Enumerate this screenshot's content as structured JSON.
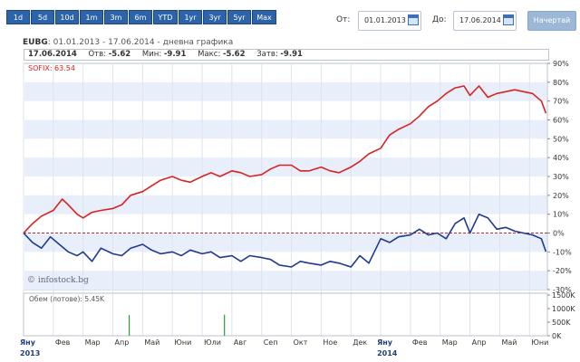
{
  "range_buttons": [
    "1d",
    "5d",
    "10d",
    "1m",
    "3m",
    "6m",
    "YTD",
    "1yr",
    "3yr",
    "5yr",
    "Max"
  ],
  "date_filter": {
    "from_label": "От:",
    "from_value": "01.01.2013",
    "to_label": "До:",
    "to_value": "17.06.2014",
    "draw_button": "Начертай"
  },
  "header": {
    "ticker": "EUBG",
    "subtitle": ": 01.01.2013 - 17.06.2014 - дневна графика"
  },
  "infobar": {
    "date": "17.06.2014",
    "open_label": "Отв:",
    "open_value": "-5.62",
    "min_label": "Мин:",
    "min_value": "-9.91",
    "max_label": "Макс:",
    "max_value": "-5.62",
    "close_label": "Затв:",
    "close_value": "-9.91"
  },
  "legend_sofix": "SOFIX: 63.54",
  "watermark": "© infostock.bg",
  "volume_label": "Обем (лотове): 5.45K",
  "colors": {
    "sofix": "#d9231f",
    "eubg": "#1f3a8f",
    "accent": "#2d63a8",
    "volume": "#2a9a3a"
  },
  "chart_data": {
    "type": "line",
    "y_unit": "%",
    "ylim": [
      -30,
      90
    ],
    "y_ticks": [
      "90%",
      "80%",
      "70%",
      "60%",
      "50%",
      "40%",
      "30%",
      "20%",
      "10%",
      "0%",
      "-10%",
      "-20%",
      "-30%"
    ],
    "x_ticks": [
      "Яну",
      "Фев",
      "Мар",
      "Апр",
      "Май",
      "Юни",
      "Юли",
      "Авг",
      "Сеп",
      "Окт",
      "Ное",
      "Дек",
      "Яну",
      "Фев",
      "Мар",
      "Апр",
      "Май",
      "Юни"
    ],
    "years": [
      "2013",
      "2014"
    ],
    "series": [
      {
        "name": "SOFIX",
        "x": [
          0,
          0.3,
          0.6,
          1.0,
          1.3,
          1.5,
          1.8,
          2.0,
          2.3,
          2.6,
          3.0,
          3.3,
          3.6,
          4.0,
          4.3,
          4.6,
          5.0,
          5.3,
          5.6,
          6.0,
          6.3,
          6.6,
          7.0,
          7.3,
          7.6,
          8.0,
          8.3,
          8.6,
          9.0,
          9.3,
          9.6,
          10.0,
          10.3,
          10.6,
          11.0,
          11.3,
          11.6,
          12.0,
          12.3,
          12.6,
          13.0,
          13.3,
          13.6,
          13.9,
          14.2,
          14.5,
          14.8,
          15.0,
          15.3,
          15.6,
          15.9,
          16.2,
          16.5,
          16.8,
          17.1,
          17.4,
          17.55
        ],
        "values": [
          0,
          5,
          9,
          12,
          18,
          15,
          10,
          8,
          11,
          12,
          13,
          15,
          20,
          22,
          25,
          28,
          30,
          28,
          27,
          30,
          32,
          30,
          33,
          32,
          30,
          31,
          34,
          36,
          36,
          33,
          33,
          35,
          33,
          32,
          35,
          38,
          42,
          45,
          52,
          55,
          58,
          62,
          67,
          70,
          74,
          77,
          78,
          73,
          78,
          72,
          74,
          75,
          76,
          75,
          74,
          70,
          63.54
        ]
      },
      {
        "name": "EUBG",
        "x": [
          0,
          0.3,
          0.6,
          0.9,
          1.2,
          1.5,
          1.8,
          2.0,
          2.3,
          2.6,
          3.0,
          3.3,
          3.6,
          4.0,
          4.3,
          4.6,
          5.0,
          5.3,
          5.6,
          6.0,
          6.3,
          6.6,
          7.0,
          7.3,
          7.6,
          8.0,
          8.3,
          8.6,
          9.0,
          9.3,
          9.6,
          10.0,
          10.3,
          10.6,
          11.0,
          11.3,
          11.6,
          12.0,
          12.3,
          12.6,
          13.0,
          13.3,
          13.6,
          13.9,
          14.2,
          14.5,
          14.8,
          15.0,
          15.3,
          15.6,
          15.9,
          16.2,
          16.5,
          16.8,
          17.1,
          17.4,
          17.55
        ],
        "values": [
          0,
          -5,
          -8,
          -2,
          -6,
          -10,
          -12,
          -10,
          -15,
          -8,
          -11,
          -12,
          -8,
          -6,
          -9,
          -11,
          -10,
          -12,
          -9,
          -11,
          -10,
          -13,
          -12,
          -15,
          -12,
          -13,
          -14,
          -17,
          -18,
          -15,
          -16,
          -17,
          -15,
          -16,
          -18,
          -12,
          -16,
          -3,
          -5,
          -2,
          -1,
          2,
          -1,
          0,
          -3,
          5,
          8,
          0,
          10,
          8,
          2,
          3,
          1,
          0,
          -1,
          -3,
          -9.91
        ]
      }
    ],
    "volume": {
      "label": "Обем (лотове)",
      "y_ticks": [
        "1500K",
        "1000K",
        "500K",
        "0K"
      ],
      "ylim": [
        0,
        1500
      ],
      "x": [
        3.55,
        6.75
      ],
      "values": [
        760,
        780
      ]
    }
  }
}
